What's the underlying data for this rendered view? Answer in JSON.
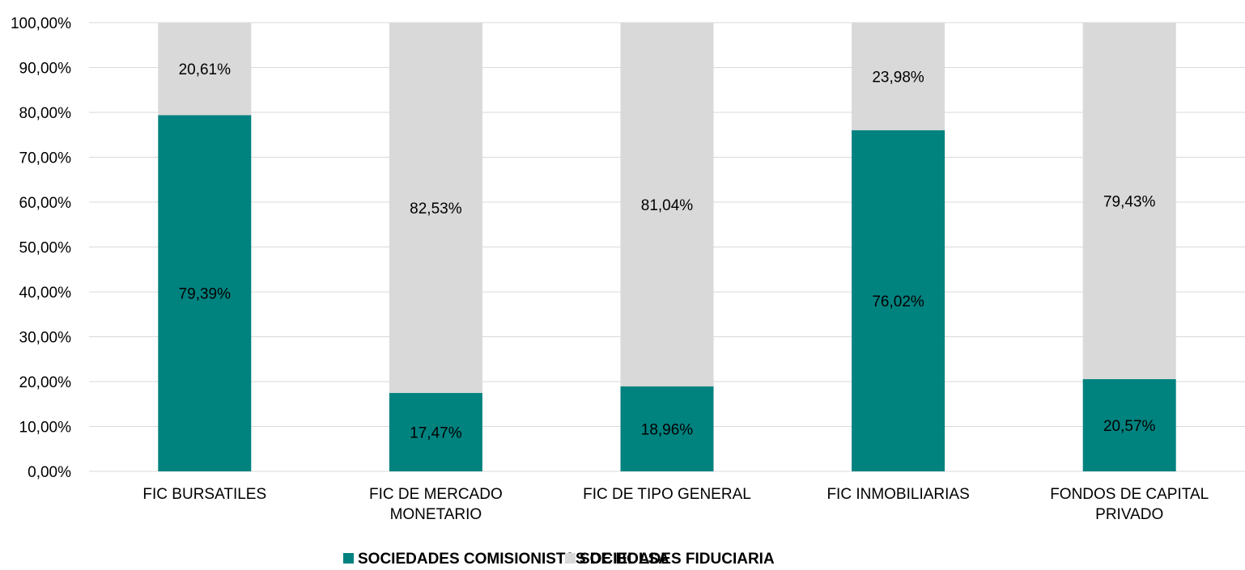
{
  "chart_data": {
    "type": "bar",
    "stacked": true,
    "title": "",
    "xlabel": "",
    "ylabel": "",
    "ylim": [
      0,
      100
    ],
    "y_ticks": [
      "0,00%",
      "10,00%",
      "20,00%",
      "30,00%",
      "40,00%",
      "50,00%",
      "60,00%",
      "70,00%",
      "80,00%",
      "90,00%",
      "100,00%"
    ],
    "grid": true,
    "legend_position": "bottom",
    "categories": [
      [
        "FIC BURSATILES"
      ],
      [
        "FIC DE MERCADO",
        "MONETARIO"
      ],
      [
        "FIC DE TIPO GENERAL"
      ],
      [
        "FIC INMOBILIARIAS"
      ],
      [
        "FONDOS DE CAPITAL",
        "PRIVADO"
      ]
    ],
    "series": [
      {
        "name": "SOCIEDADES COMISIONISTAS DE BOLSA",
        "color": "#00827f",
        "values": [
          79.39,
          17.47,
          18.96,
          76.02,
          20.57
        ],
        "labels": [
          "79,39%",
          "17,47%",
          "18,96%",
          "76,02%",
          "20,57%"
        ]
      },
      {
        "name": "SOCIEDADES FIDUCIARIA",
        "color": "#d9d9d9",
        "values": [
          20.61,
          82.53,
          81.04,
          23.98,
          79.43
        ],
        "labels": [
          "20,61%",
          "82,53%",
          "81,04%",
          "23,98%",
          "79,43%"
        ]
      }
    ]
  }
}
